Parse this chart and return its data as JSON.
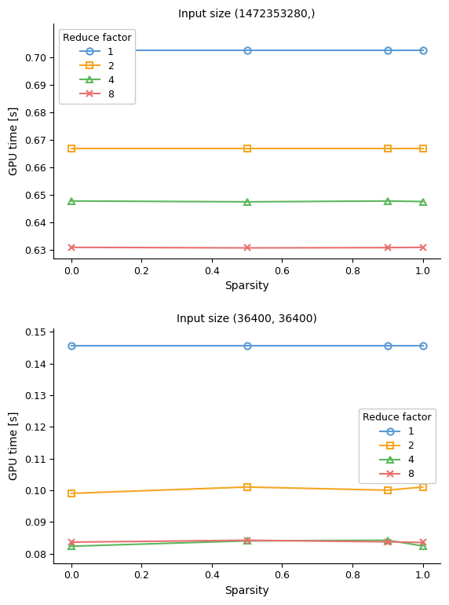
{
  "plot1": {
    "title": "Input size (1472353280,)",
    "xlabel": "Sparsity",
    "ylabel": "GPU time [s]",
    "sparsity": [
      0.0,
      0.5,
      0.9,
      1.0
    ],
    "series": [
      {
        "label": "1",
        "color": "#5B9BD5",
        "marker": "o",
        "values": [
          0.7025,
          0.7025,
          0.7025,
          0.7025
        ]
      },
      {
        "label": "2",
        "color": "#F5A623",
        "marker": "s",
        "values": [
          0.6668,
          0.6668,
          0.6668,
          0.6668
        ]
      },
      {
        "label": "4",
        "color": "#5CB85C",
        "marker": "^",
        "values": [
          0.6478,
          0.6475,
          0.6478,
          0.6476
        ]
      },
      {
        "label": "8",
        "color": "#E87070",
        "marker": "x",
        "values": [
          0.631,
          0.6308,
          0.6309,
          0.631
        ]
      }
    ],
    "ylim": [
      0.627,
      0.712
    ],
    "yticks": [
      0.63,
      0.64,
      0.65,
      0.66,
      0.67,
      0.68,
      0.69,
      0.7
    ],
    "legend_loc": "upper left",
    "legend_bbox": null
  },
  "plot2": {
    "title": "Input size (36400, 36400)",
    "xlabel": "Sparsity",
    "ylabel": "GPU time [s]",
    "sparsity": [
      0.0,
      0.5,
      0.9,
      1.0
    ],
    "series": [
      {
        "label": "1",
        "color": "#5B9BD5",
        "marker": "o",
        "values": [
          0.1455,
          0.1455,
          0.1455,
          0.1455
        ]
      },
      {
        "label": "2",
        "color": "#F5A623",
        "marker": "s",
        "values": [
          0.099,
          0.101,
          0.1,
          0.101
        ]
      },
      {
        "label": "4",
        "color": "#5CB85C",
        "marker": "^",
        "values": [
          0.0823,
          0.084,
          0.0842,
          0.0824
        ]
      },
      {
        "label": "8",
        "color": "#E87070",
        "marker": "x",
        "values": [
          0.0836,
          0.0842,
          0.0837,
          0.0835
        ]
      }
    ],
    "ylim": [
      0.077,
      0.151
    ],
    "yticks": [
      0.08,
      0.09,
      0.1,
      0.11,
      0.12,
      0.13,
      0.14,
      0.15
    ],
    "legend_loc": "center right",
    "legend_bbox": null
  },
  "legend_title": "Reduce factor",
  "figure_width": 5.72,
  "figure_height": 7.7,
  "dpi": 100
}
